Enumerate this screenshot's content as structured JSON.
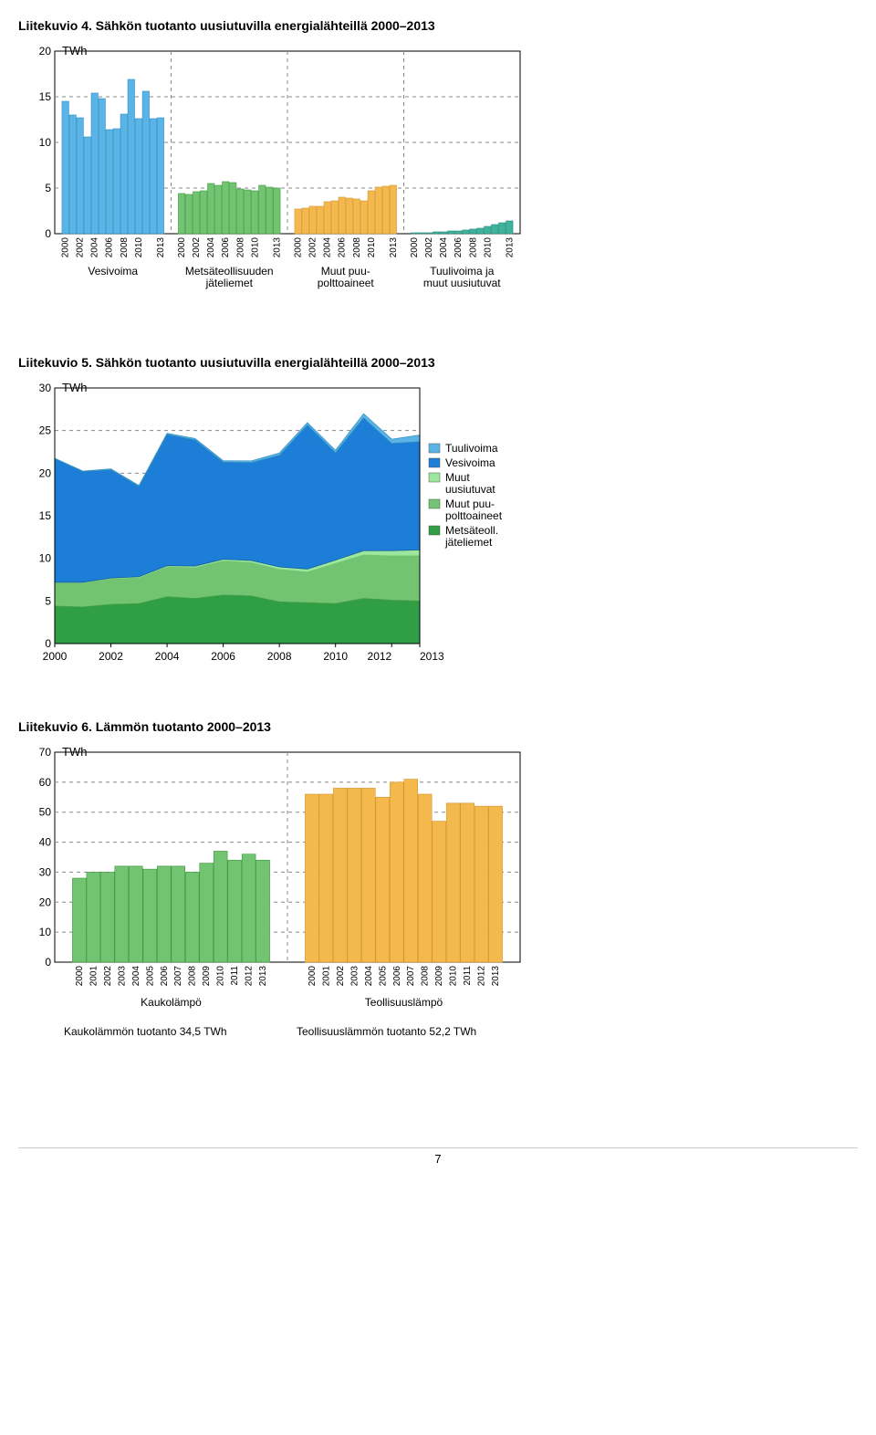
{
  "page_number": "7",
  "chart1": {
    "title": "Liitekuvio 4. Sähkön tuotanto uusiutuvilla energialähteillä 2000–2013",
    "type": "bar",
    "y_label": "TWh",
    "ylim": [
      0,
      20
    ],
    "yticks": [
      0,
      5,
      10,
      15,
      20
    ],
    "years": [
      "2000",
      "2002",
      "2004",
      "2006",
      "2008",
      "2010",
      "2013",
      "2000",
      "2002",
      "2004",
      "2006",
      "2008",
      "2010",
      "2013",
      "2000",
      "2002",
      "2004",
      "2006",
      "2008",
      "2010",
      "2013",
      "2000",
      "2002",
      "2004",
      "2006",
      "2008",
      "2010",
      "2013"
    ],
    "groups": [
      {
        "label": "Vesivoima",
        "fill": "#5ab4e6",
        "stroke": "#2a8cc4",
        "values": [
          14.5,
          13.0,
          12.7,
          10.6,
          15.4,
          14.8,
          11.4,
          11.5,
          13.1,
          16.9,
          12.6,
          15.6,
          12.6,
          12.7
        ]
      },
      {
        "label": "Metsäteollisuuden\njäteliemet",
        "fill": "#72c472",
        "stroke": "#3d9a3d",
        "values": [
          4.4,
          4.3,
          4.6,
          4.7,
          5.5,
          5.3,
          5.7,
          5.6,
          4.9,
          4.8,
          4.7,
          5.3,
          5.1,
          5.0
        ]
      },
      {
        "label": "Muut puu-\npolttoaineet",
        "fill": "#f4b94c",
        "stroke": "#d6952e",
        "values": [
          2.7,
          2.8,
          3.0,
          3.0,
          3.5,
          3.6,
          4.0,
          3.9,
          3.8,
          3.6,
          4.7,
          5.1,
          5.2,
          5.3
        ]
      },
      {
        "label": "Tuulivoima ja\nmuut uusiutuvat",
        "fill": "#3db39e",
        "stroke": "#2a8a78",
        "values": [
          0.1,
          0.1,
          0.1,
          0.2,
          0.2,
          0.3,
          0.3,
          0.4,
          0.5,
          0.6,
          0.8,
          1.0,
          1.2,
          1.4
        ]
      }
    ]
  },
  "chart2": {
    "title": "Liitekuvio 5. Sähkön tuotanto uusiutuvilla energialähteillä 2000–2013",
    "type": "area",
    "y_label": "TWh",
    "ylim": [
      0,
      30
    ],
    "yticks": [
      0,
      5,
      10,
      15,
      20,
      25,
      30
    ],
    "x_years": [
      2000,
      2001,
      2002,
      2003,
      2004,
      2005,
      2006,
      2007,
      2008,
      2009,
      2010,
      2011,
      2012,
      2013
    ],
    "x_ticks": [
      "2000",
      "2002",
      "2004",
      "2006",
      "2008",
      "2010",
      "20122013"
    ],
    "series": [
      {
        "name": "Metsäteoll. jäteliemet",
        "label": "Metsäteoll.\njäteliemet",
        "fill": "#2f9e44",
        "stroke": "#237a33",
        "values": [
          4.4,
          4.3,
          4.6,
          4.7,
          5.5,
          5.3,
          5.7,
          5.6,
          4.9,
          4.8,
          4.7,
          5.3,
          5.1,
          5.0
        ]
      },
      {
        "name": "Muut puu-polttoaineet",
        "label": "Muut puu-\npolttoaineet",
        "fill": "#72c472",
        "stroke": "#4da64d",
        "values": [
          2.7,
          2.8,
          3.0,
          3.0,
          3.5,
          3.6,
          4.0,
          3.9,
          3.8,
          3.6,
          4.7,
          5.1,
          5.2,
          5.3
        ]
      },
      {
        "name": "Muut uusiutuvat",
        "label": "Muut\nuusiutuvat",
        "fill": "#9de79d",
        "stroke": "#7acb7a",
        "values": [
          0.1,
          0.1,
          0.1,
          0.15,
          0.15,
          0.2,
          0.2,
          0.25,
          0.3,
          0.35,
          0.4,
          0.5,
          0.6,
          0.7
        ]
      },
      {
        "name": "Vesivoima",
        "label": "Vesivoima",
        "fill": "#1c7ed6",
        "stroke": "#155fa0",
        "values": [
          14.5,
          13.0,
          12.7,
          10.6,
          15.4,
          14.8,
          11.4,
          11.5,
          13.1,
          16.9,
          12.6,
          15.6,
          12.6,
          12.7
        ]
      },
      {
        "name": "Tuulivoima",
        "label": "Tuulivoima",
        "fill": "#5ab4e6",
        "stroke": "#3a94c6",
        "values": [
          0.05,
          0.05,
          0.1,
          0.1,
          0.12,
          0.17,
          0.16,
          0.19,
          0.26,
          0.28,
          0.29,
          0.48,
          0.49,
          0.77
        ]
      }
    ],
    "legend_order": [
      "Tuulivoima",
      "Vesivoima",
      "Muut\nuusiutuvat",
      "Muut puu-\npolttoaineet",
      "Metsäteoll.\njäteliemet"
    ],
    "legend_colors": [
      "#5ab4e6",
      "#1c7ed6",
      "#9de79d",
      "#72c472",
      "#2f9e44"
    ]
  },
  "chart3": {
    "title": "Liitekuvio 6. Lämmön tuotanto 2000–2013",
    "type": "bar",
    "y_label": "TWh",
    "ylim": [
      0,
      70
    ],
    "yticks": [
      0,
      10,
      20,
      30,
      40,
      50,
      60,
      70
    ],
    "years_all": [
      "2000",
      "2001",
      "2002",
      "2003",
      "2004",
      "2005",
      "2006",
      "2007",
      "2008",
      "2009",
      "2010",
      "2011",
      "2012",
      "2013"
    ],
    "groups": [
      {
        "label": "Kaukolämpö",
        "fill": "#72c472",
        "stroke": "#3d9a3d",
        "footnote": "Kaukolämmön tuotanto 34,5 TWh",
        "values": [
          28,
          30,
          30,
          32,
          32,
          31,
          32,
          32,
          30,
          33,
          37,
          34,
          36,
          34
        ]
      },
      {
        "label": "Teollisuuslämpö",
        "fill": "#f4b94c",
        "stroke": "#d6952e",
        "footnote": "Teollisuuslämmön tuotanto 52,2 TWh",
        "values": [
          56,
          56,
          58,
          58,
          58,
          55,
          60,
          61,
          56,
          47,
          53,
          53,
          52,
          52
        ]
      }
    ]
  }
}
